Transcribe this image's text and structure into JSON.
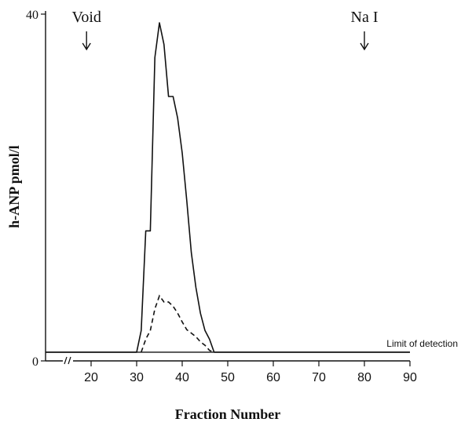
{
  "chart_data": {
    "type": "line",
    "title": "",
    "xlabel": "Fraction Number",
    "ylabel": "h-ANP  pmol/l",
    "xlim": [
      10,
      90
    ],
    "ylim": [
      0,
      40
    ],
    "x_ticks": [
      20,
      30,
      40,
      50,
      60,
      70,
      80,
      90
    ],
    "x_tick_labels": [
      "20",
      "30",
      "40",
      "50",
      "60",
      "70",
      "80",
      "90"
    ],
    "y_ticks": [
      0,
      40
    ],
    "y_tick_labels": [
      "0",
      "40"
    ],
    "axis_break": "//",
    "grid": false,
    "legend": "none",
    "detection_limit": {
      "label": "Limit of detection",
      "value": 1.0
    },
    "markers": [
      {
        "label": "Void",
        "x": 19
      },
      {
        "label": "Na I",
        "x": 80
      }
    ],
    "series": [
      {
        "style": "solid",
        "x": [
          10,
          30,
          31,
          32,
          33,
          34,
          35,
          36,
          37,
          38,
          39,
          40,
          41,
          42,
          43,
          44,
          45,
          46,
          47,
          90
        ],
        "y": [
          1.0,
          1.0,
          3.5,
          15,
          15,
          35,
          39,
          36.5,
          30.5,
          30.5,
          28,
          24,
          18.5,
          12.5,
          8.5,
          5.5,
          3.5,
          2.5,
          1.0,
          1.0
        ]
      },
      {
        "style": "dashed",
        "x": [
          31,
          32,
          33,
          34,
          35,
          36,
          37,
          38,
          39,
          40,
          41,
          42,
          43,
          44,
          45,
          46,
          47
        ],
        "y": [
          1.0,
          2.5,
          3.5,
          6.0,
          7.5,
          6.8,
          6.8,
          6.3,
          5.5,
          4.5,
          3.6,
          3.2,
          2.8,
          2.2,
          1.8,
          1.2,
          1.0
        ]
      }
    ]
  }
}
